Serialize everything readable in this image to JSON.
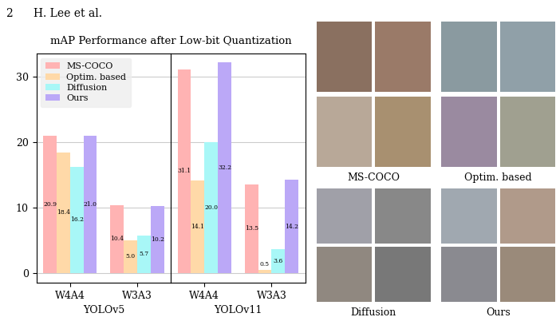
{
  "header": {
    "page_number": 2,
    "running_head": "H. Lee et al."
  },
  "title": "mAP Performance after Low-bit Quantization",
  "chart_data": [
    {
      "type": "bar",
      "xlabel": "YOLOv5",
      "categories": [
        "W4A4",
        "W3A3"
      ],
      "series": [
        {
          "name": "MS-COCO",
          "color": "#ffb3b3",
          "values": [
            20.9,
            10.4
          ]
        },
        {
          "name": "Optim. based",
          "color": "#ffd9a8",
          "values": [
            18.4,
            5.0
          ]
        },
        {
          "name": "Diffusion",
          "color": "#a8f7f7",
          "values": [
            16.2,
            5.7
          ]
        },
        {
          "name": "Ours",
          "color": "#bba8f7",
          "values": [
            21.0,
            10.2
          ]
        }
      ],
      "ylim": [
        -1.5,
        33.5
      ],
      "yticks": [
        0,
        10,
        20,
        30
      ],
      "grid": true,
      "legend": "upper left",
      "data_labels": true
    },
    {
      "type": "bar",
      "xlabel": "YOLOv11",
      "categories": [
        "W4A4",
        "W3A3"
      ],
      "series": [
        {
          "name": "MS-COCO",
          "color": "#ffb3b3",
          "values": [
            31.1,
            13.5
          ]
        },
        {
          "name": "Optim. based",
          "color": "#ffd9a8",
          "values": [
            14.1,
            0.5
          ]
        },
        {
          "name": "Diffusion",
          "color": "#a8f7f7",
          "values": [
            20.0,
            3.6
          ]
        },
        {
          "name": "Ours",
          "color": "#bba8f7",
          "values": [
            32.2,
            14.2
          ]
        }
      ],
      "ylim": [
        -1.5,
        33.5
      ],
      "yticks": [
        0,
        10,
        20,
        30
      ],
      "grid": true,
      "tick_labels": "x",
      "data_labels": true
    }
  ],
  "image_grids": [
    {
      "caption": "MS-COCO"
    },
    {
      "caption": "Optim. based"
    },
    {
      "caption": "Diffusion"
    },
    {
      "caption": "Ours"
    }
  ]
}
